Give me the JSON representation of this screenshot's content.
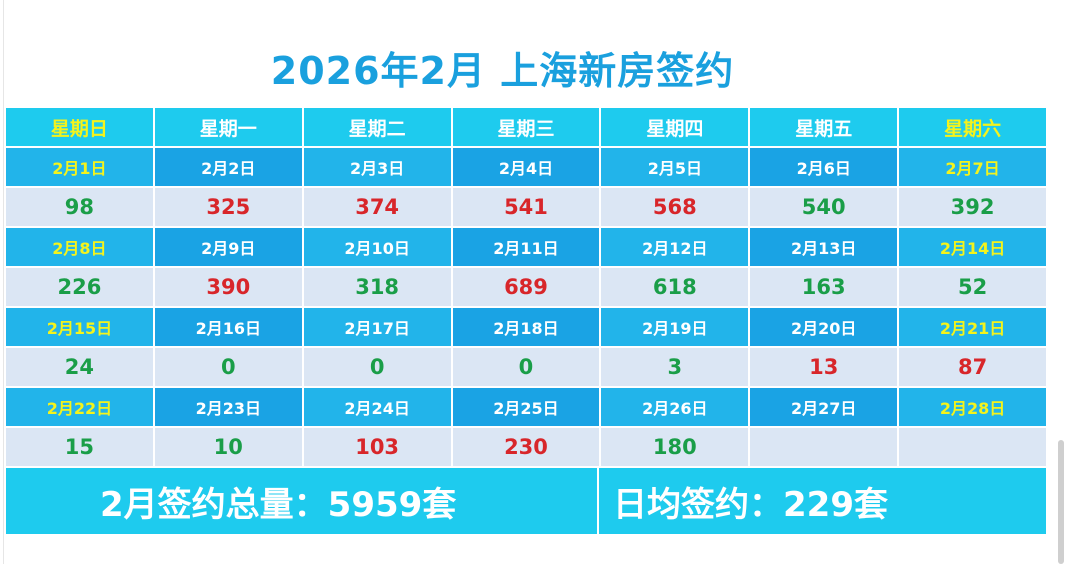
{
  "title": "2026年2月 上海新房签约",
  "weekdays": [
    "星期日",
    "星期一",
    "星期二",
    "星期三",
    "星期四",
    "星期五",
    "星期六"
  ],
  "weeks": [
    {
      "dates": [
        "2月1日",
        "2月2日",
        "2月3日",
        "2月4日",
        "2月5日",
        "2月6日",
        "2月7日"
      ],
      "values": [
        "98",
        "325",
        "374",
        "541",
        "568",
        "540",
        "392"
      ]
    },
    {
      "dates": [
        "2月8日",
        "2月9日",
        "2月10日",
        "2月11日",
        "2月12日",
        "2月13日",
        "2月14日"
      ],
      "values": [
        "226",
        "390",
        "318",
        "689",
        "618",
        "163",
        "52"
      ]
    },
    {
      "dates": [
        "2月15日",
        "2月16日",
        "2月17日",
        "2月18日",
        "2月19日",
        "2月20日",
        "2月21日"
      ],
      "values": [
        "24",
        "0",
        "0",
        "0",
        "3",
        "13",
        "87"
      ]
    },
    {
      "dates": [
        "2月22日",
        "2月23日",
        "2月24日",
        "2月25日",
        "2月26日",
        "2月27日",
        "2月28日"
      ],
      "values": [
        "15",
        "10",
        "103",
        "230",
        "180",
        "",
        ""
      ]
    }
  ],
  "value_colors": [
    [
      "down",
      "up",
      "up",
      "up",
      "up",
      "down",
      "down"
    ],
    [
      "down",
      "up",
      "down",
      "up",
      "down",
      "down",
      "down"
    ],
    [
      "down",
      "down",
      "down",
      "down",
      "down",
      "up",
      "up"
    ],
    [
      "down",
      "down",
      "up",
      "up",
      "down",
      "",
      ""
    ]
  ],
  "summary": {
    "total": "2月签约总量：5959套",
    "average": "日均签约：229套"
  },
  "colors": {
    "title": "#1aa0de",
    "header_bg": "#1ecbee",
    "date_bg": "#22b4ea",
    "value_bg": "#dbe6f4",
    "weekend_text": "#f4f31c",
    "up": "#d8262a",
    "down": "#1a9e48"
  }
}
